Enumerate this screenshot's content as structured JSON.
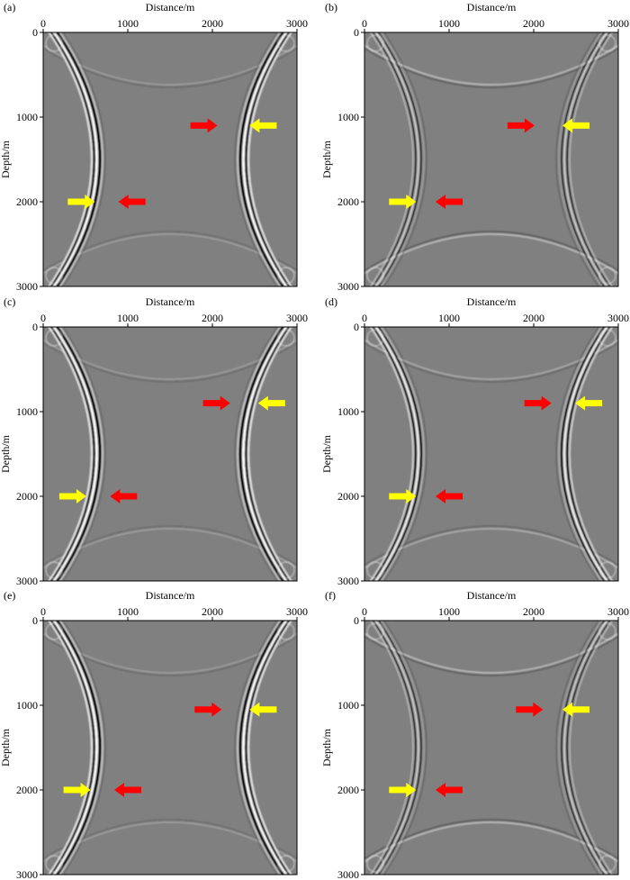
{
  "figure": {
    "xlabel": "Distance/m",
    "ylabel": "Depth/m",
    "xticks": [
      0,
      1000,
      2000,
      3000
    ],
    "yticks": [
      0,
      1000,
      2000,
      3000
    ],
    "xlim": [
      0,
      3000
    ],
    "ylim": [
      0,
      3000
    ],
    "colors": {
      "background": "#808080",
      "arrow_red": "#ff0000",
      "arrow_yellow": "#ffff00"
    },
    "panels": [
      {
        "label": "(a)",
        "reflector_contrast": "strong",
        "arrows": [
          {
            "color": "red",
            "direction": "right",
            "depth": 1100,
            "x": 1900
          },
          {
            "color": "yellow",
            "direction": "left",
            "depth": 1100,
            "x": 2600
          },
          {
            "color": "yellow",
            "direction": "right",
            "depth": 2000,
            "x": 450
          },
          {
            "color": "red",
            "direction": "left",
            "depth": 2000,
            "x": 1050
          }
        ]
      },
      {
        "label": "(b)",
        "reflector_contrast": "weak",
        "arrows": [
          {
            "color": "red",
            "direction": "right",
            "depth": 1100,
            "x": 1850
          },
          {
            "color": "yellow",
            "direction": "left",
            "depth": 1100,
            "x": 2500
          },
          {
            "color": "yellow",
            "direction": "right",
            "depth": 2000,
            "x": 450
          },
          {
            "color": "red",
            "direction": "left",
            "depth": 2000,
            "x": 1000
          }
        ]
      },
      {
        "label": "(c)",
        "reflector_contrast": "strong",
        "arrows": [
          {
            "color": "red",
            "direction": "right",
            "depth": 900,
            "x": 2050
          },
          {
            "color": "yellow",
            "direction": "left",
            "depth": 900,
            "x": 2700
          },
          {
            "color": "yellow",
            "direction": "right",
            "depth": 2000,
            "x": 350
          },
          {
            "color": "red",
            "direction": "left",
            "depth": 2000,
            "x": 950
          }
        ]
      },
      {
        "label": "(d)",
        "reflector_contrast": "medium",
        "arrows": [
          {
            "color": "red",
            "direction": "right",
            "depth": 900,
            "x": 2050
          },
          {
            "color": "yellow",
            "direction": "left",
            "depth": 900,
            "x": 2650
          },
          {
            "color": "yellow",
            "direction": "right",
            "depth": 2000,
            "x": 450
          },
          {
            "color": "red",
            "direction": "left",
            "depth": 2000,
            "x": 1000
          }
        ]
      },
      {
        "label": "(e)",
        "reflector_contrast": "strong",
        "arrows": [
          {
            "color": "red",
            "direction": "right",
            "depth": 1050,
            "x": 1950
          },
          {
            "color": "yellow",
            "direction": "left",
            "depth": 1050,
            "x": 2600
          },
          {
            "color": "yellow",
            "direction": "right",
            "depth": 2000,
            "x": 400
          },
          {
            "color": "red",
            "direction": "left",
            "depth": 2000,
            "x": 1000
          }
        ]
      },
      {
        "label": "(f)",
        "reflector_contrast": "weak",
        "arrows": [
          {
            "color": "red",
            "direction": "right",
            "depth": 1050,
            "x": 1950
          },
          {
            "color": "yellow",
            "direction": "left",
            "depth": 1050,
            "x": 2500
          },
          {
            "color": "yellow",
            "direction": "right",
            "depth": 2000,
            "x": 450
          },
          {
            "color": "red",
            "direction": "left",
            "depth": 2000,
            "x": 1000
          }
        ]
      }
    ]
  }
}
